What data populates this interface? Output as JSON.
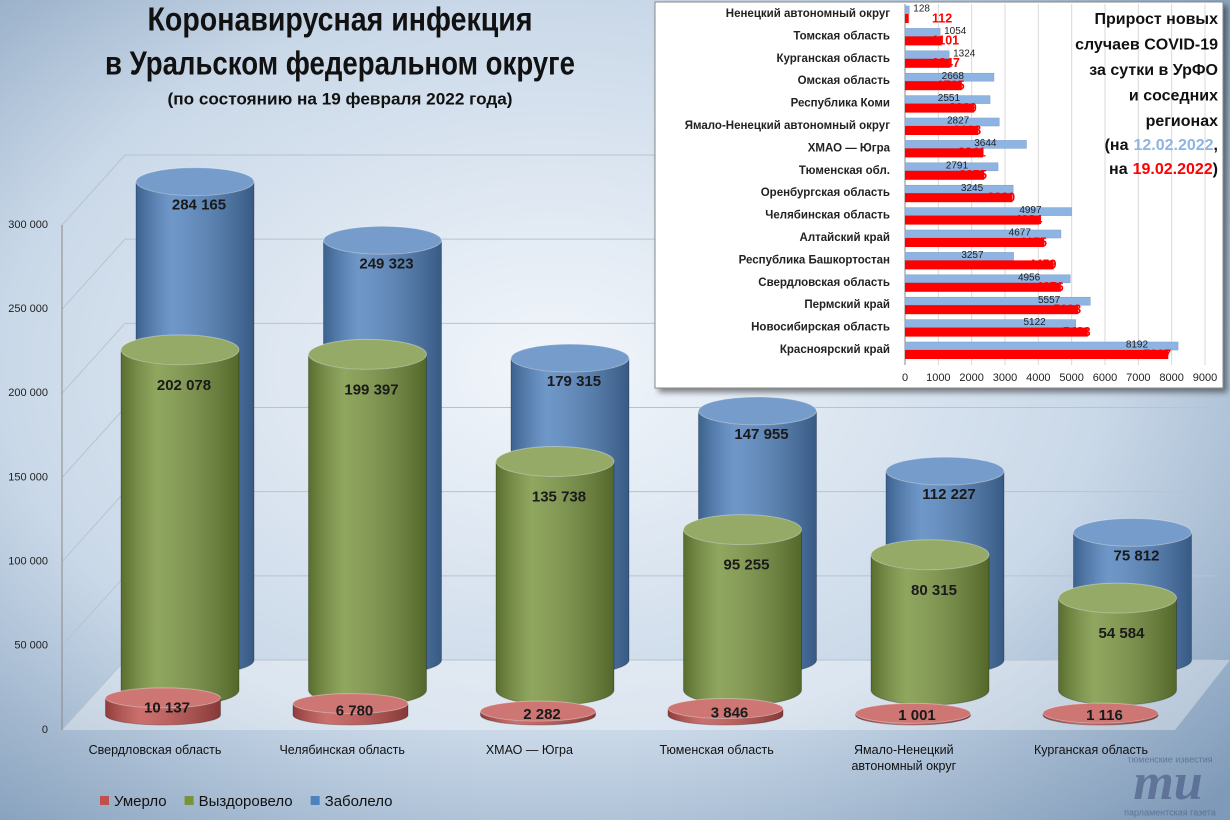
{
  "chart_data": [
    {
      "type": "cylinder",
      "title": [
        "Коронавирусная инфекция",
        "в Уральском федеральном округе"
      ],
      "subtitle": "(по состоянию на 19 февраля 2022 года)",
      "categories": [
        "Свердловская область",
        "Челябинская область",
        "ХМАО — Югра",
        "Тюменская область",
        "Ямало-Ненецкий автономный округ",
        "Курганская область"
      ],
      "series": [
        {
          "name": "Умерло",
          "color": "#c0504d",
          "values": [
            10137,
            6780,
            2282,
            3846,
            1001,
            1116
          ],
          "value_labels": [
            "10 137",
            "6 780",
            "2 282",
            "3 846",
            "1 001",
            "1 116"
          ]
        },
        {
          "name": "Выздоровело",
          "color": "#77933c",
          "values": [
            202078,
            199397,
            135738,
            95255,
            80315,
            54584
          ],
          "value_labels": [
            "202 078",
            "199 397",
            "135 738",
            "95 255",
            "80 315",
            "54 584"
          ]
        },
        {
          "name": "Заболело",
          "color": "#4f81bd",
          "values": [
            284165,
            249323,
            179315,
            147955,
            112227,
            75812
          ],
          "value_labels": [
            "284 165",
            "249 323",
            "179 315",
            "147 955",
            "112 227",
            "75 812"
          ]
        }
      ],
      "ylim": [
        0,
        300000
      ],
      "yticks": [
        0,
        {
          "value": 50000,
          "label": "50 000"
        },
        {
          "value": 100000,
          "label": "100 000"
        },
        {
          "value": 150000,
          "label": "150 000"
        },
        {
          "value": 200000,
          "label": "200 000"
        },
        {
          "value": 250000,
          "label": "250 000"
        },
        {
          "value": 300000,
          "label": "300 000"
        }
      ],
      "grid": true,
      "legend": "bottom"
    },
    {
      "type": "barh",
      "title": [
        "Прирост новых",
        "случаев COVID-19",
        "за сутки в УрФО",
        "и соседних",
        "регионах"
      ],
      "legend_text": [
        "(на",
        ",",
        "на",
        ")"
      ],
      "categories": [
        "Ненецкий автономный округ",
        "Томская область",
        "Курганская область",
        "Омская область",
        "Республика Коми",
        "Ямало-Ненецкий автономный округ",
        "ХМАО — Югра",
        "Тюменская обл.",
        "Оренбургская область",
        "Челябинская область",
        "Алтайский край",
        "Республика Башкортостан",
        "Свердловская область",
        "Пермский край",
        "Новосибирская область",
        "Красноярский край"
      ],
      "series": [
        {
          "name": "12.02.2022",
          "color": "#8eb4e3",
          "values": [
            128,
            1054,
            1324,
            2668,
            2551,
            2827,
            3644,
            2791,
            3245,
            4997,
            4677,
            3257,
            4956,
            5557,
            5122,
            8192
          ]
        },
        {
          "name": "19.02.2022",
          "color": "#ff0000",
          "values": [
            112,
            1101,
            1347,
            1705,
            2069,
            2198,
            2341,
            2375,
            3220,
            4034,
            4175,
            4459,
            4676,
            5198,
            5483,
            7897
          ]
        }
      ],
      "xlim": [
        0,
        9000
      ],
      "xticks": [
        0,
        1000,
        2000,
        3000,
        4000,
        5000,
        6000,
        7000,
        8000,
        9000
      ],
      "grid": true
    }
  ],
  "logo": {
    "top": "тюменские известия",
    "mark": "ти",
    "bottom": "парламентская газета"
  }
}
